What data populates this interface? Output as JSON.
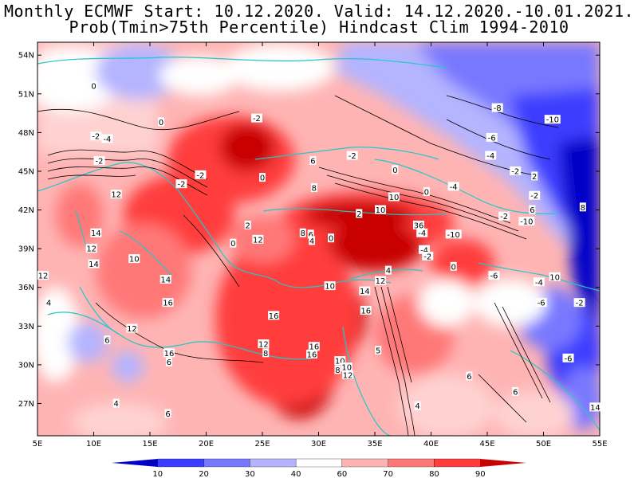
{
  "title": {
    "line1": "Monthly ECMWF Start: 10.12.2020. Valid: 14.12.2020.-10.01.2021.",
    "line2": "Prob(Tmin>75th Percentile) Hindcast Clim 1994-2010"
  },
  "axes": {
    "lon_labels": [
      "5E",
      "10E",
      "15E",
      "20E",
      "25E",
      "30E",
      "35E",
      "40E",
      "45E",
      "50E",
      "55E"
    ],
    "lat_labels": [
      "54N",
      "51N",
      "48N",
      "45N",
      "42N",
      "39N",
      "36N",
      "33N",
      "30N",
      "27N"
    ]
  },
  "colorbar": {
    "labels": [
      "10",
      "20",
      "30",
      "40",
      "60",
      "70",
      "80",
      "90"
    ],
    "colors": [
      "#0000c8",
      "#3c3cff",
      "#7878ff",
      "#b4b4ff",
      "#ffffff",
      "#ffb4b4",
      "#ff7878",
      "#ff3c3c",
      "#c80000"
    ]
  },
  "contour_labels": [
    {
      "id": "0-a",
      "text": "0",
      "lon": 10.0,
      "lat": 51.6
    },
    {
      "id": "-2-a",
      "text": "-2",
      "lon": 10.2,
      "lat": 47.7
    },
    {
      "id": "-4-a",
      "text": "-4",
      "lon": 11.2,
      "lat": 47.5
    },
    {
      "id": "-2-b",
      "text": "-2",
      "lon": 10.5,
      "lat": 45.8
    },
    {
      "id": "0-b",
      "text": "0",
      "lon": 16.0,
      "lat": 48.8
    },
    {
      "id": "-2-c",
      "text": "-2",
      "lon": 24.5,
      "lat": 49.1
    },
    {
      "id": "0-c",
      "text": "0",
      "lon": 25.0,
      "lat": 44.5
    },
    {
      "id": "-2-d",
      "text": "-2",
      "lon": 17.8,
      "lat": 44.0
    },
    {
      "id": "-2-e",
      "text": "-2",
      "lon": 19.5,
      "lat": 44.7
    },
    {
      "id": "6-a",
      "text": "6",
      "lon": 29.5,
      "lat": 45.8
    },
    {
      "id": "-2-f",
      "text": "-2",
      "lon": 33.0,
      "lat": 46.2
    },
    {
      "id": "0-d",
      "text": "0",
      "lon": 36.8,
      "lat": 45.1
    },
    {
      "id": "8-a",
      "text": "8",
      "lon": 29.6,
      "lat": 43.7
    },
    {
      "id": "0-e",
      "text": "0",
      "lon": 39.6,
      "lat": 43.4
    },
    {
      "id": "-8-a",
      "text": "-8",
      "lon": 45.9,
      "lat": 49.9
    },
    {
      "id": "-10-a",
      "text": "-10",
      "lon": 50.8,
      "lat": 49.0
    },
    {
      "id": "-6-a",
      "text": "-6",
      "lon": 45.4,
      "lat": 47.6
    },
    {
      "id": "-4-a2",
      "text": "-4",
      "lon": 45.3,
      "lat": 46.2
    },
    {
      "id": "-2-g",
      "text": "-2",
      "lon": 47.5,
      "lat": 45.0
    },
    {
      "id": "2-a",
      "text": "2",
      "lon": 49.2,
      "lat": 44.6
    },
    {
      "id": "-4-b",
      "text": "-4",
      "lon": 42.0,
      "lat": 43.8
    },
    {
      "id": "-2-h",
      "text": "-2",
      "lon": 49.2,
      "lat": 43.1
    },
    {
      "id": "6-b",
      "text": "6",
      "lon": 49.0,
      "lat": 42.0
    },
    {
      "id": "-10-b",
      "text": "-10",
      "lon": 48.5,
      "lat": 41.1
    },
    {
      "id": "-2-i",
      "text": "-2",
      "lon": 46.5,
      "lat": 41.5
    },
    {
      "id": "8-b",
      "text": "8",
      "lon": 53.5,
      "lat": 42.2
    },
    {
      "id": "10-a",
      "text": "10",
      "lon": 36.7,
      "lat": 43.0
    },
    {
      "id": "10-b",
      "text": "10",
      "lon": 35.5,
      "lat": 42.0
    },
    {
      "id": "2-b",
      "text": "2",
      "lon": 33.6,
      "lat": 41.7
    },
    {
      "id": "36-a",
      "text": "36",
      "lon": 38.9,
      "lat": 40.8
    },
    {
      "id": "-10-c",
      "text": "-10",
      "lon": 42.0,
      "lat": 40.1
    },
    {
      "id": "-4-c",
      "text": "-4",
      "lon": 39.2,
      "lat": 40.2
    },
    {
      "id": "12-a",
      "text": "12",
      "lon": 12.0,
      "lat": 43.2
    },
    {
      "id": "14-a",
      "text": "14",
      "lon": 10.2,
      "lat": 40.2
    },
    {
      "id": "12-b",
      "text": "12",
      "lon": 9.8,
      "lat": 39.0
    },
    {
      "id": "2-c",
      "text": "2",
      "lon": 23.7,
      "lat": 40.8
    },
    {
      "id": "12-c",
      "text": "12",
      "lon": 24.6,
      "lat": 39.7
    },
    {
      "id": "8-c",
      "text": "8",
      "lon": 28.6,
      "lat": 40.2
    },
    {
      "id": "6-c",
      "text": "6",
      "lon": 29.3,
      "lat": 40.1
    },
    {
      "id": "4-a",
      "text": "4",
      "lon": 29.4,
      "lat": 39.6
    },
    {
      "id": "0-f",
      "text": "0",
      "lon": 31.1,
      "lat": 39.8
    },
    {
      "id": "0-g",
      "text": "0",
      "lon": 22.4,
      "lat": 39.4
    },
    {
      "id": "10-c",
      "text": "10",
      "lon": 13.6,
      "lat": 38.2
    },
    {
      "id": "14-b",
      "text": "14",
      "lon": 10.0,
      "lat": 37.8
    },
    {
      "id": "12-d",
      "text": "12",
      "lon": 5.5,
      "lat": 36.9
    },
    {
      "id": "14-c",
      "text": "14",
      "lon": 16.4,
      "lat": 36.6
    },
    {
      "id": "10-d",
      "text": "10",
      "lon": 31.0,
      "lat": 36.1
    },
    {
      "id": "12-e",
      "text": "12",
      "lon": 35.5,
      "lat": 36.5
    },
    {
      "id": "14-d",
      "text": "14",
      "lon": 34.1,
      "lat": 35.7
    },
    {
      "id": "4-b",
      "text": "4",
      "lon": 36.2,
      "lat": 37.3
    },
    {
      "id": "-4-d",
      "text": "-4",
      "lon": 39.4,
      "lat": 38.9
    },
    {
      "id": "-2-j",
      "text": "-2",
      "lon": 39.7,
      "lat": 38.4
    },
    {
      "id": "0-h",
      "text": "0",
      "lon": 42.0,
      "lat": 37.6
    },
    {
      "id": "-6-b",
      "text": "-6",
      "lon": 45.6,
      "lat": 36.9
    },
    {
      "id": "10-e",
      "text": "10",
      "lon": 51.0,
      "lat": 36.8
    },
    {
      "id": "-4-e",
      "text": "-4",
      "lon": 49.6,
      "lat": 36.4
    },
    {
      "id": "-6-c",
      "text": "-6",
      "lon": 49.8,
      "lat": 34.8
    },
    {
      "id": "-2-k",
      "text": "-2",
      "lon": 53.2,
      "lat": 34.8
    },
    {
      "id": "16-a",
      "text": "16",
      "lon": 16.6,
      "lat": 34.8
    },
    {
      "id": "16-b",
      "text": "16",
      "lon": 34.2,
      "lat": 34.2
    },
    {
      "id": "16-c",
      "text": "16",
      "lon": 26.0,
      "lat": 33.8
    },
    {
      "id": "4-c",
      "text": "4",
      "lon": 6.0,
      "lat": 34.8
    },
    {
      "id": "12-f",
      "text": "12",
      "lon": 13.4,
      "lat": 32.8
    },
    {
      "id": "6-d",
      "text": "6",
      "lon": 11.2,
      "lat": 31.9
    },
    {
      "id": "12-g",
      "text": "12",
      "lon": 25.1,
      "lat": 31.6
    },
    {
      "id": "16-d",
      "text": "16",
      "lon": 29.6,
      "lat": 31.4
    },
    {
      "id": "8-d",
      "text": "8",
      "lon": 25.3,
      "lat": 30.9
    },
    {
      "id": "16-e",
      "text": "16",
      "lon": 16.7,
      "lat": 30.9
    },
    {
      "id": "16-f",
      "text": "16",
      "lon": 29.4,
      "lat": 30.8
    },
    {
      "id": "10-f",
      "text": "10",
      "lon": 31.9,
      "lat": 30.3
    },
    {
      "id": "10-g",
      "text": "10",
      "lon": 32.5,
      "lat": 29.8
    },
    {
      "id": "12-h",
      "text": "12",
      "lon": 32.6,
      "lat": 29.2
    },
    {
      "id": "8-e",
      "text": "8",
      "lon": 31.7,
      "lat": 29.6
    },
    {
      "id": "5-a",
      "text": "5",
      "lon": 35.3,
      "lat": 31.1
    },
    {
      "id": "6-e",
      "text": "6",
      "lon": 16.7,
      "lat": 30.2
    },
    {
      "id": "-6-d",
      "text": "-6",
      "lon": 52.2,
      "lat": 30.5
    },
    {
      "id": "6-f",
      "text": "6",
      "lon": 43.4,
      "lat": 29.1
    },
    {
      "id": "6-g",
      "text": "6",
      "lon": 47.5,
      "lat": 27.9
    },
    {
      "id": "4-d",
      "text": "4",
      "lon": 12.0,
      "lat": 27.0
    },
    {
      "id": "6-h",
      "text": "6",
      "lon": 16.6,
      "lat": 26.2
    },
    {
      "id": "4-e",
      "text": "4",
      "lon": 38.8,
      "lat": 26.8
    },
    {
      "id": "14-e",
      "text": "14",
      "lon": 54.6,
      "lat": 26.7
    }
  ]
}
